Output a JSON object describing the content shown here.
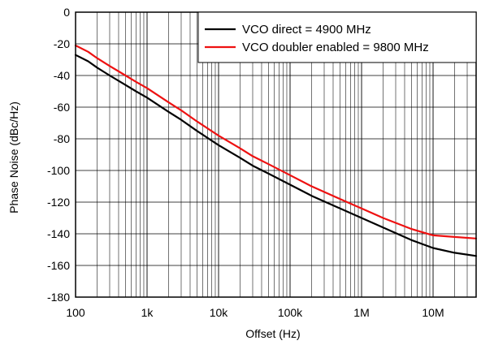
{
  "chart_data": {
    "type": "line",
    "title": "",
    "xlabel": "Offset (Hz)",
    "ylabel": "Phase Noise (dBc/Hz)",
    "x_scale": "log",
    "xlim": [
      100,
      40000000
    ],
    "ylim": [
      -180,
      0
    ],
    "grid": true,
    "legend_position": "top-right",
    "x_tick_values": [
      100,
      1000,
      10000,
      100000,
      1000000,
      10000000
    ],
    "x_tick_labels": [
      "100",
      "1k",
      "10k",
      "100k",
      "1M",
      "10M"
    ],
    "y_tick_values": [
      0,
      -20,
      -40,
      -60,
      -80,
      -100,
      -120,
      -140,
      -160,
      -180
    ],
    "y_tick_labels": [
      "0",
      "-20",
      "-40",
      "-60",
      "-80",
      "-100",
      "-120",
      "-140",
      "-160",
      "-180"
    ],
    "series": [
      {
        "name": "VCO direct = 4900 MHz",
        "color": "#000000",
        "x": [
          100,
          150,
          200,
          300,
          500,
          700,
          1000,
          2000,
          3000,
          5000,
          10000,
          20000,
          30000,
          50000,
          100000,
          200000,
          500000,
          1000000,
          2000000,
          5000000,
          10000000,
          20000000,
          40000000
        ],
        "y": [
          -27,
          -31,
          -35,
          -40,
          -46,
          -50,
          -54,
          -63,
          -68,
          -75,
          -84,
          -92,
          -97,
          -102,
          -109,
          -116,
          -124,
          -130,
          -136,
          -144,
          -149,
          -152,
          -154
        ]
      },
      {
        "name": "VCO doubler enabled = 9800 MHz",
        "color": "#ee1111",
        "x": [
          100,
          150,
          200,
          300,
          500,
          700,
          1000,
          2000,
          3000,
          5000,
          10000,
          20000,
          30000,
          50000,
          100000,
          200000,
          500000,
          1000000,
          2000000,
          5000000,
          10000000,
          20000000,
          40000000
        ],
        "y": [
          -21,
          -25,
          -29,
          -34,
          -40,
          -44,
          -48,
          -57,
          -62,
          -69,
          -78,
          -86,
          -91,
          -96,
          -103,
          -110,
          -118,
          -124,
          -130,
          -137,
          -141,
          -142,
          -143
        ]
      }
    ]
  }
}
